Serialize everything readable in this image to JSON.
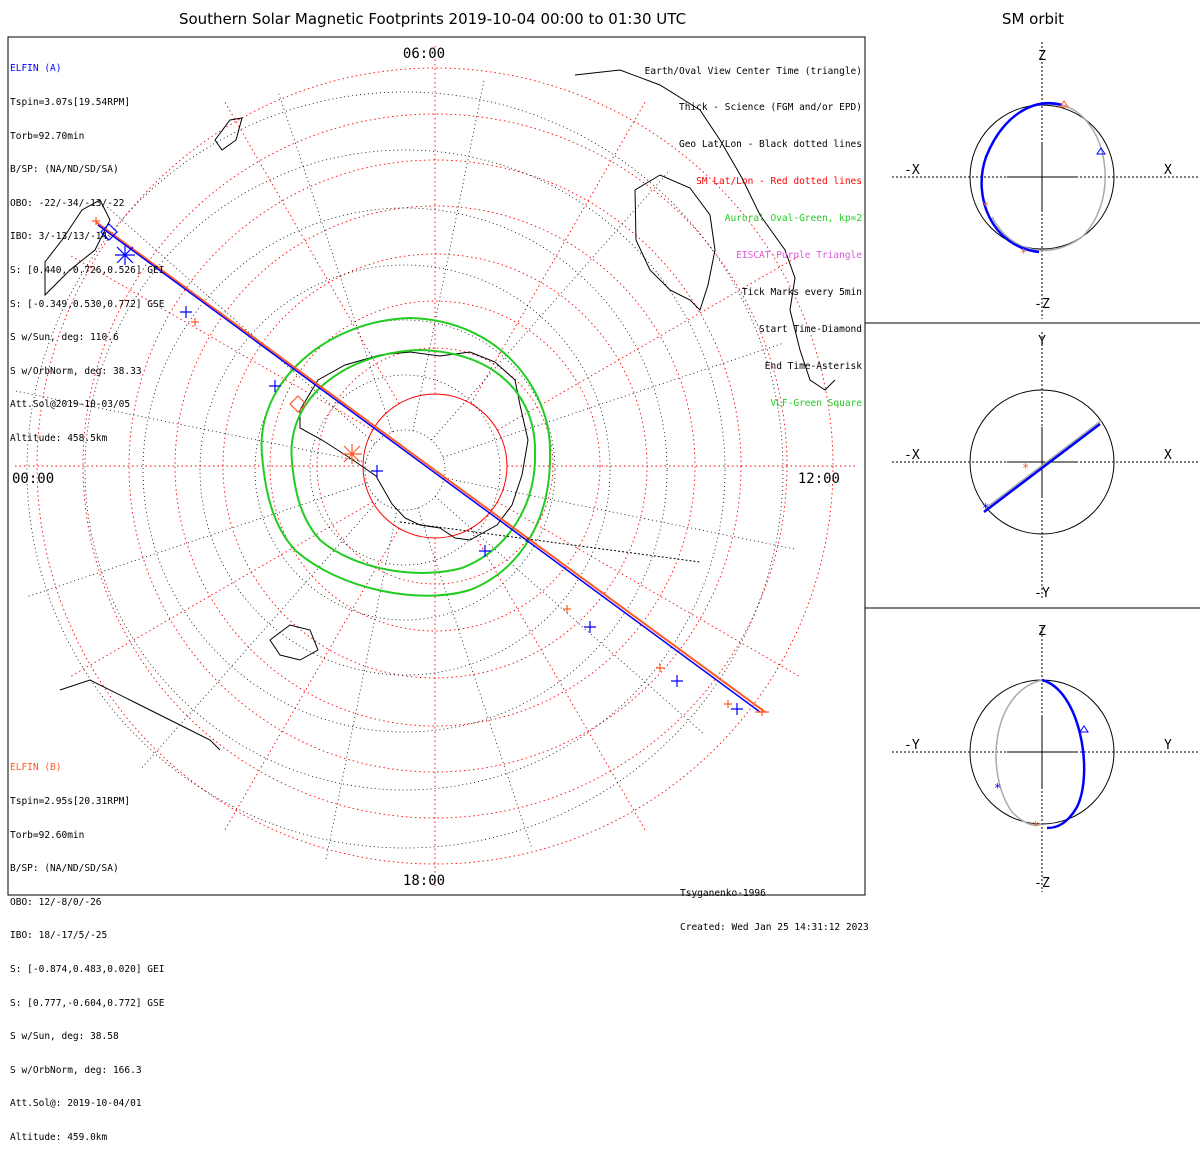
{
  "title": "Southern Solar Magnetic Footprints 2019-10-04 00:00 to 01:30 UTC",
  "orbit_title": "SM orbit",
  "mlt_labels": {
    "top": "06:00",
    "left": "00:00",
    "right": "12:00",
    "bottom": "18:00"
  },
  "spacecraft_a": {
    "name": "ELFIN (A)",
    "color": "#0000ff",
    "lines": [
      "Tspin=3.07s[19.54RPM]",
      "Torb=92.70min",
      "B/SP: (NA/ND/SD/SA)",
      "OBO: -22/-34/-13/-22",
      "IBO: 3/-13/13/-14",
      "S: [0.440,-0.726,0.526] GEI",
      "S: [-0.349,0.530,0.772] GSE",
      "S w/Sun, deg: 110.6",
      "S w/OrbNorm, deg: 38.33",
      "Att.Sol@2019-10-03/05",
      "Altitude: 458.5km"
    ]
  },
  "spacecraft_b": {
    "name": "ELFIN (B)",
    "color": "#ff5a28",
    "lines": [
      "Tspin=2.95s[20.31RPM]",
      "Torb=92.60min",
      "B/SP: (NA/ND/SD/SA)",
      "OBO: 12/-8/0/-26",
      "IBO: 18/-17/5/-25",
      "S: [-0.874,0.483,0.020] GEI",
      "S: [0.777,-0.604,0.772] GSE",
      "S w/Sun, deg: 38.58",
      "S w/OrbNorm, deg: 166.3",
      "Att.Sol@: 2019-10-04/01",
      "Altitude: 459.0km"
    ]
  },
  "legend": [
    {
      "text": "Earth/Oval View Center Time (triangle)",
      "color": "#000000"
    },
    {
      "text": "Thick - Science (FGM and/or EPD)",
      "color": "#000000"
    },
    {
      "text": "Geo Lat/Lon - Black dotted lines",
      "color": "#000000"
    },
    {
      "text": "SM Lat/Lon - Red dotted lines",
      "color": "#ff0000"
    },
    {
      "text": "Auroral Oval-Green, kp=2",
      "color": "#22cc22"
    },
    {
      "text": "EISCAT-Purple Triangle",
      "color": "#dd55dd"
    },
    {
      "text": "Tick Marks every 5min",
      "color": "#000000"
    },
    {
      "text": "Start Time-Diamond",
      "color": "#000000"
    },
    {
      "text": "End Time-Asterisk",
      "color": "#000000"
    },
    {
      "text": "VLF-Green Square",
      "color": "#22cc22"
    }
  ],
  "footer": {
    "model": "Tsyganenko-1996",
    "created": "Created: Wed Jan 25 14:31:12 2023"
  },
  "orbit_panels": [
    {
      "up": "Z",
      "down": "-Z",
      "left": "-X",
      "right": "X"
    },
    {
      "up": "Y",
      "down": "-Y",
      "left": "-X",
      "right": "X"
    },
    {
      "up": "Z",
      "down": "-Z",
      "left": "-Y",
      "right": "Y"
    }
  ],
  "colors": {
    "elfin_a": "#0000ff",
    "elfin_b": "#ff5a28",
    "sm_grid": "#ff0000",
    "auroral_oval": "#22cc22",
    "orbit_track": "#aaaaaa"
  }
}
